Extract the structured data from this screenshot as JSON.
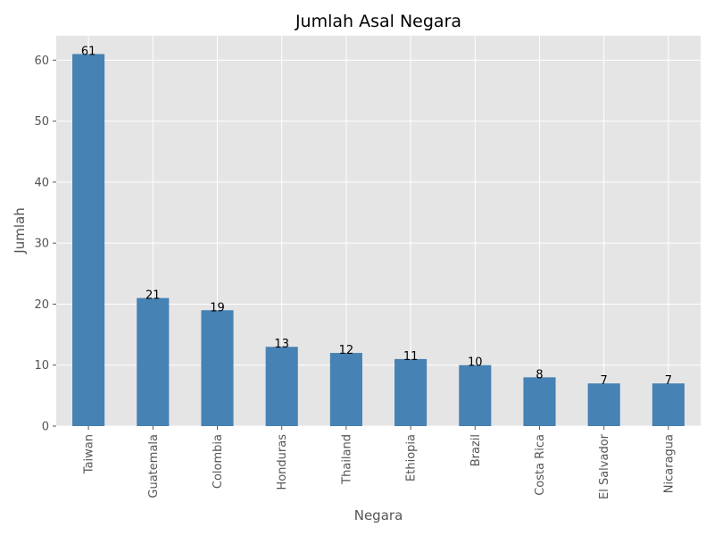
{
  "chart_data": {
    "type": "bar",
    "title": "Jumlah Asal Negara",
    "xlabel": "Negara",
    "ylabel": "Jumlah",
    "categories": [
      "Taiwan",
      "Guatemala",
      "Colombia",
      "Honduras",
      "Thailand",
      "Ethiopia",
      "Brazil",
      "Costa Rica",
      "El Salvador",
      "Nicaragua"
    ],
    "values": [
      61,
      21,
      19,
      13,
      12,
      11,
      10,
      8,
      7,
      7
    ],
    "ylim": [
      0,
      64
    ],
    "yticks": [
      0,
      10,
      20,
      30,
      40,
      50,
      60
    ],
    "grid": true,
    "legend": "none",
    "colors": {
      "bar": "#4682b4",
      "plot_background": "#e5e5e5",
      "grid": "#ffffff"
    }
  }
}
